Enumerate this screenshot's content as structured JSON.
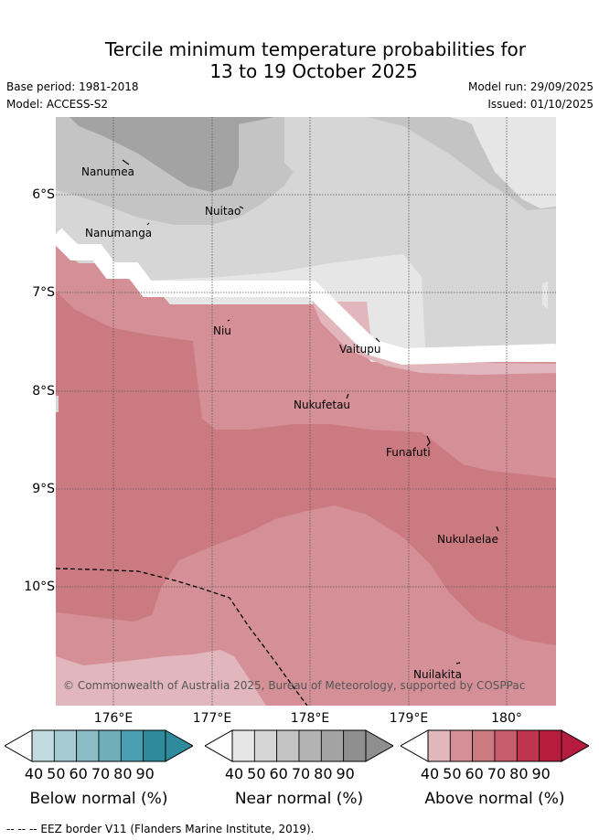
{
  "header": {
    "title_line1": "Tercile minimum temperature probabilities for",
    "title_line2": "13 to 19 October 2025",
    "base_period": "Base period: 1981-2018",
    "model": "Model: ACCESS-S2",
    "model_run": "Model run: 29/09/2025",
    "issued": "Issued: 01/10/2025"
  },
  "map": {
    "y_axis_labels": [
      "6°S",
      "7°S",
      "8°S",
      "9°S",
      "10°S"
    ],
    "x_axis_labels": [
      "176°E",
      "177°E",
      "178°E",
      "179°E",
      "180°"
    ],
    "places": [
      "Nanumea",
      "Nuitao",
      "Nanumanga",
      "Niu",
      "Vaitupu",
      "Nukufetau",
      "Funafuti",
      "Nukulaelae",
      "Nuilakita"
    ],
    "copyright": "© Commonwealth of Australia 2025, Bureau of Meteorology, supported by COSPPac"
  },
  "colorbars": {
    "ticks": [
      "40",
      "50",
      "60",
      "70",
      "80",
      "90"
    ],
    "below_title": "Below normal (%)",
    "near_title": "Near normal (%)",
    "above_title": "Above normal (%)",
    "below_colors": [
      "#c1dbe0",
      "#a6cbd2",
      "#8bbcc6",
      "#6fadbb",
      "#4a9fb0",
      "#2e8a9c"
    ],
    "near_colors": [
      "#e6e6e6",
      "#d6d6d6",
      "#c4c4c4",
      "#b3b3b3",
      "#a3a3a3",
      "#8f8f8f"
    ],
    "above_colors": [
      "#e1b6bc",
      "#d59097",
      "#cc7a82",
      "#c65c6c",
      "#bf3550",
      "#b61c3e"
    ]
  },
  "footer": {
    "legend_text": "-- -- -- EEZ border V11 (Flanders Marine Institute, 2019)."
  }
}
